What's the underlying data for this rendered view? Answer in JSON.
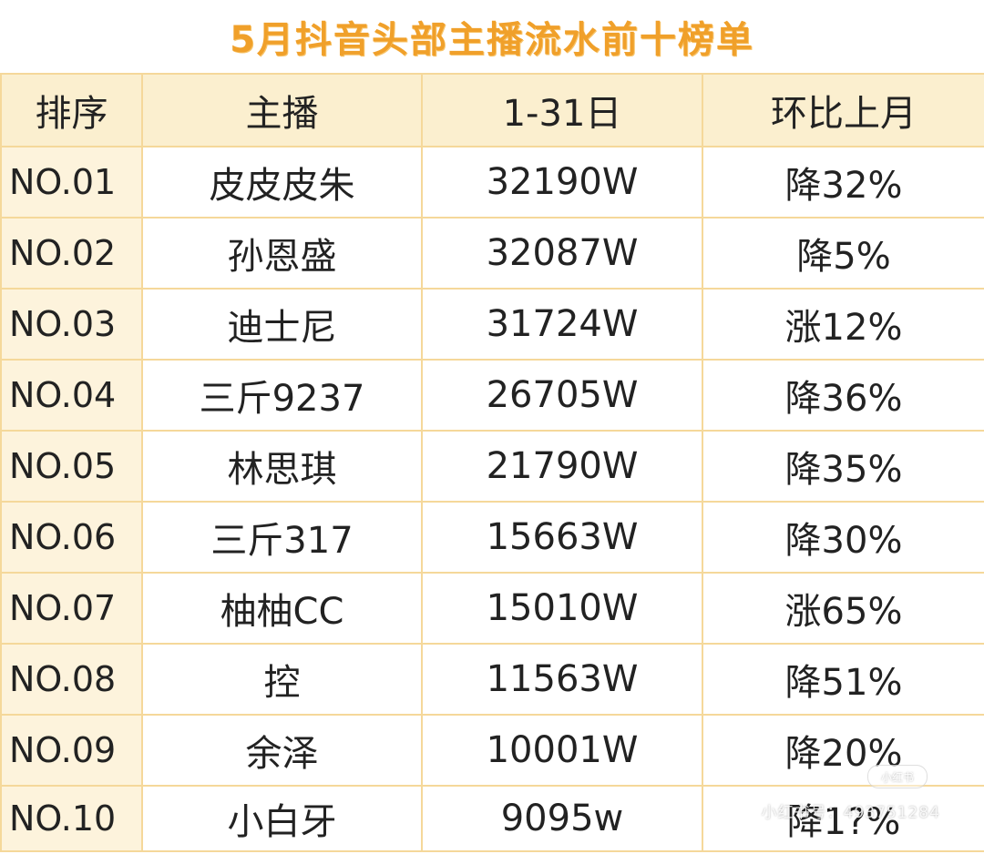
{
  "title": "5月抖音头部主播流水前十榜单",
  "table": {
    "headers": [
      "排序",
      "主播",
      "1-31日",
      "环比上月"
    ],
    "rows": [
      {
        "rank": "NO.01",
        "name": "皮皮皮朱",
        "flow": "32190W",
        "mom": "降32%"
      },
      {
        "rank": "NO.02",
        "name": "孙恩盛",
        "flow": "32087W",
        "mom": "降5%"
      },
      {
        "rank": "NO.03",
        "name": "迪士尼",
        "flow": "31724W",
        "mom": "涨12%"
      },
      {
        "rank": "NO.04",
        "name": "三斤9237",
        "flow": "26705W",
        "mom": "降36%"
      },
      {
        "rank": "NO.05",
        "name": "林思琪",
        "flow": "21790W",
        "mom": "降35%"
      },
      {
        "rank": "NO.06",
        "name": "三斤317",
        "flow": "15663W",
        "mom": "降30%"
      },
      {
        "rank": "NO.07",
        "name": "柚柚CC",
        "flow": "15010W",
        "mom": "涨65%"
      },
      {
        "rank": "NO.08",
        "name": "控",
        "flow": "11563W",
        "mom": "降51%"
      },
      {
        "rank": "NO.09",
        "name": "余泽",
        "flow": "10001W",
        "mom": "降20%"
      },
      {
        "rank": "NO.10",
        "name": "小白牙",
        "flow": "9095w",
        "mom": "降1?%"
      }
    ]
  },
  "watermark": {
    "badge": "小红书",
    "text": "小红书号：493751284"
  },
  "colors": {
    "title": "#f0a02a",
    "header_bg": "#fbefcf",
    "rank_bg": "#fdf3dc",
    "border": "#f5d89a"
  }
}
